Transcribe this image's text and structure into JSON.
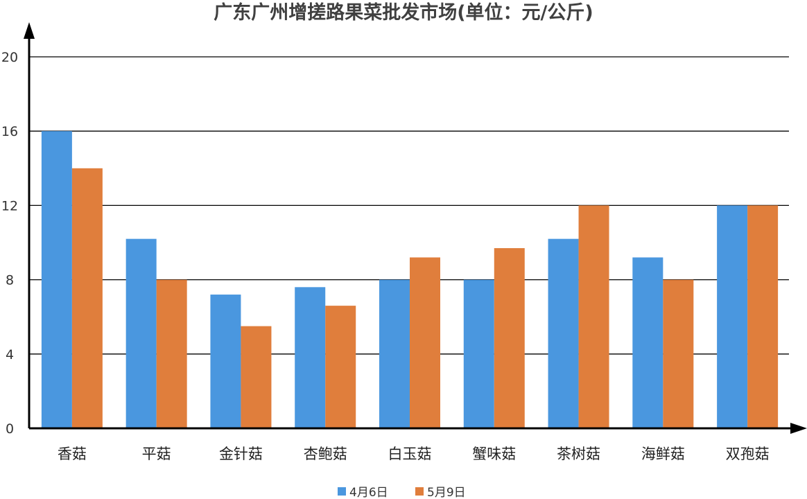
{
  "chart_data": {
    "type": "bar",
    "title": "广东广州增搓路果菜批发市场(单位：元/公斤)",
    "categories": [
      "香菇",
      "平菇",
      "金针菇",
      "杏鲍菇",
      "白玉菇",
      "蟹味菇",
      "茶树菇",
      "海鲜菇",
      "双孢菇"
    ],
    "series": [
      {
        "name": "4月6日",
        "values": [
          16,
          10.2,
          7.2,
          7.6,
          8,
          8,
          10.2,
          9.2,
          12
        ]
      },
      {
        "name": "5月9日",
        "values": [
          14,
          8,
          5.5,
          6.6,
          9.2,
          9.7,
          12,
          8,
          12
        ]
      }
    ],
    "ylim": [
      0,
      20
    ],
    "yticks": [
      0,
      4,
      8,
      12,
      16,
      20
    ],
    "xlabel": "",
    "ylabel": "",
    "grid": true,
    "legend_position": "bottom",
    "colors": [
      "#4a97df",
      "#e07e3c"
    ]
  }
}
